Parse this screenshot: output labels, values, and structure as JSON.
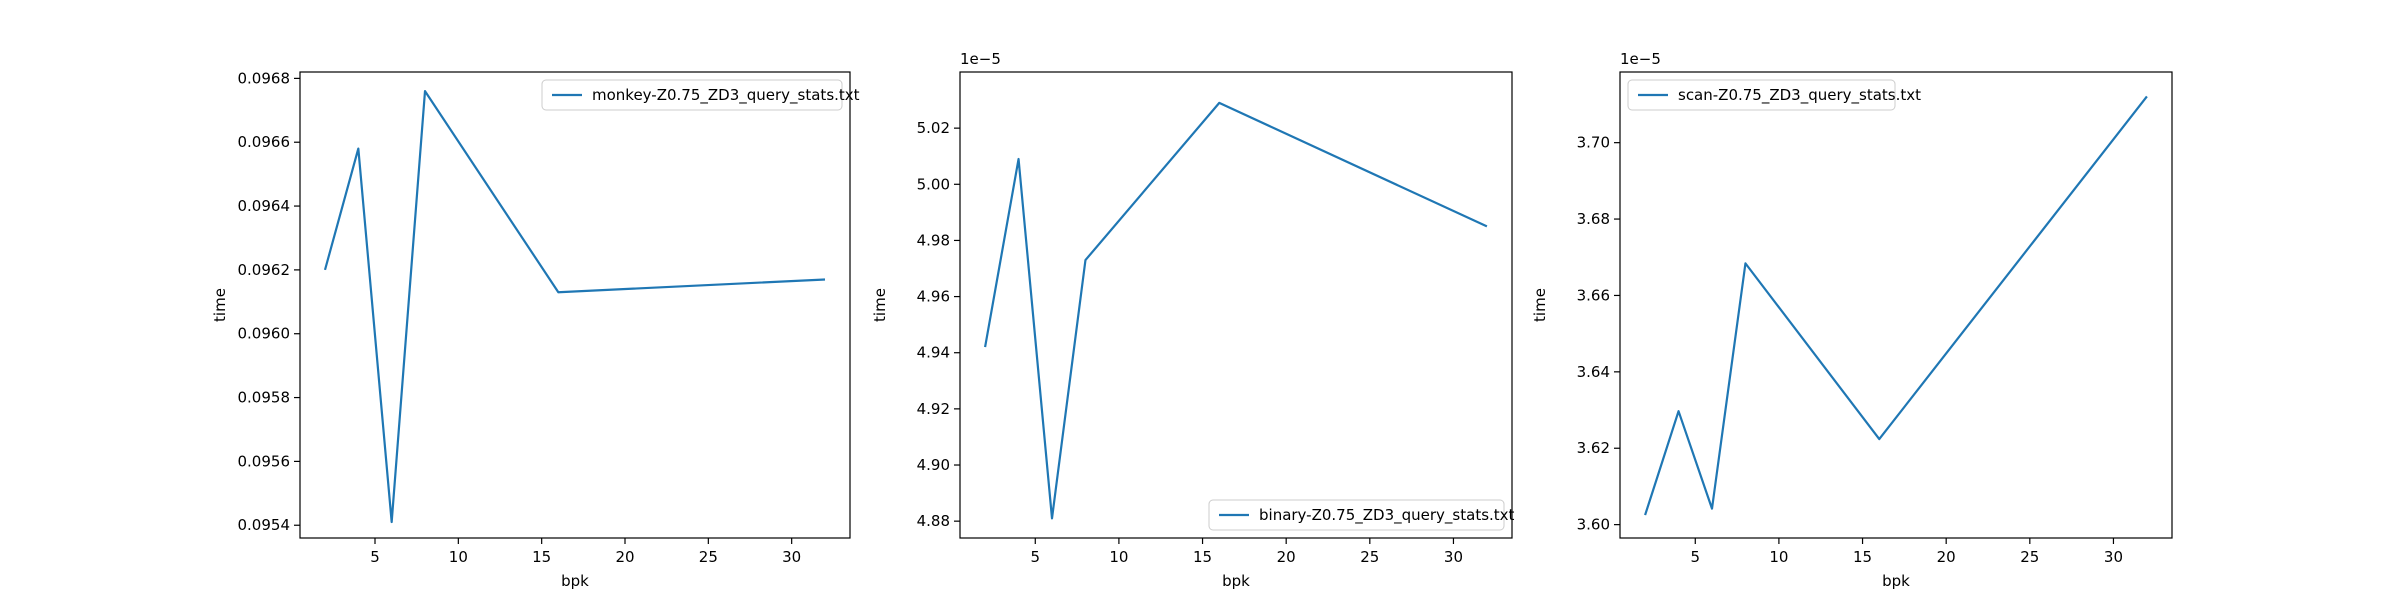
{
  "chart_data": [
    {
      "type": "line",
      "xlabel": "bpk",
      "ylabel": "time",
      "offset_text": "",
      "xlim": [
        0.5,
        33.5
      ],
      "ylim": [
        0.09536,
        0.09682
      ],
      "xticks": [
        5,
        10,
        15,
        20,
        25,
        30
      ],
      "xtick_labels": [
        "5",
        "10",
        "15",
        "20",
        "25",
        "30"
      ],
      "yticks": [
        0.0954,
        0.0956,
        0.0958,
        0.096,
        0.0962,
        0.0964,
        0.0966,
        0.0968
      ],
      "ytick_labels": [
        "0.0954",
        "0.0956",
        "0.0958",
        "0.0960",
        "0.0962",
        "0.0964",
        "0.0966",
        "0.0968"
      ],
      "legend_position": "upper right",
      "grid": false,
      "color": "#1f77b4",
      "series": [
        {
          "name": "monkey-Z0.75_ZD3_query_stats.txt",
          "x": [
            2,
            4,
            6,
            8,
            16,
            32
          ],
          "y": [
            0.0962,
            0.09658,
            0.09541,
            0.09676,
            0.09613,
            0.09617
          ]
        }
      ]
    },
    {
      "type": "line",
      "xlabel": "bpk",
      "ylabel": "time",
      "offset_text": "1e−5",
      "xlim": [
        0.5,
        33.5
      ],
      "ylim": [
        4.874,
        5.04
      ],
      "xticks": [
        5,
        10,
        15,
        20,
        25,
        30
      ],
      "xtick_labels": [
        "5",
        "10",
        "15",
        "20",
        "25",
        "30"
      ],
      "yticks": [
        4.88,
        4.9,
        4.92,
        4.94,
        4.96,
        4.98,
        5.0,
        5.02
      ],
      "ytick_labels": [
        "4.88",
        "4.90",
        "4.92",
        "4.94",
        "4.96",
        "4.98",
        "5.00",
        "5.02"
      ],
      "legend_position": "lower right",
      "grid": false,
      "color": "#1f77b4",
      "series": [
        {
          "name": "binary-Z0.75_ZD3_query_stats.txt",
          "x": [
            2,
            4,
            6,
            8,
            16,
            32
          ],
          "y": [
            4.942,
            5.009,
            4.881,
            4.973,
            5.029,
            4.985
          ]
        }
      ]
    },
    {
      "type": "line",
      "xlabel": "bpk",
      "ylabel": "time",
      "offset_text": "1e−5",
      "xlim": [
        0.5,
        33.5
      ],
      "ylim": [
        3.5965,
        3.7185
      ],
      "xticks": [
        5,
        10,
        15,
        20,
        25,
        30
      ],
      "xtick_labels": [
        "5",
        "10",
        "15",
        "20",
        "25",
        "30"
      ],
      "yticks": [
        3.6,
        3.62,
        3.64,
        3.66,
        3.68,
        3.7
      ],
      "ytick_labels": [
        "3.60",
        "3.62",
        "3.64",
        "3.66",
        "3.68",
        "3.70"
      ],
      "legend_position": "upper left",
      "grid": false,
      "color": "#1f77b4",
      "series": [
        {
          "name": "scan-Z0.75_ZD3_query_stats.txt",
          "x": [
            2,
            4,
            6,
            8,
            16,
            32
          ],
          "y": [
            3.6025,
            3.6297,
            3.6042,
            3.6684,
            3.6224,
            3.7121
          ]
        }
      ]
    }
  ]
}
